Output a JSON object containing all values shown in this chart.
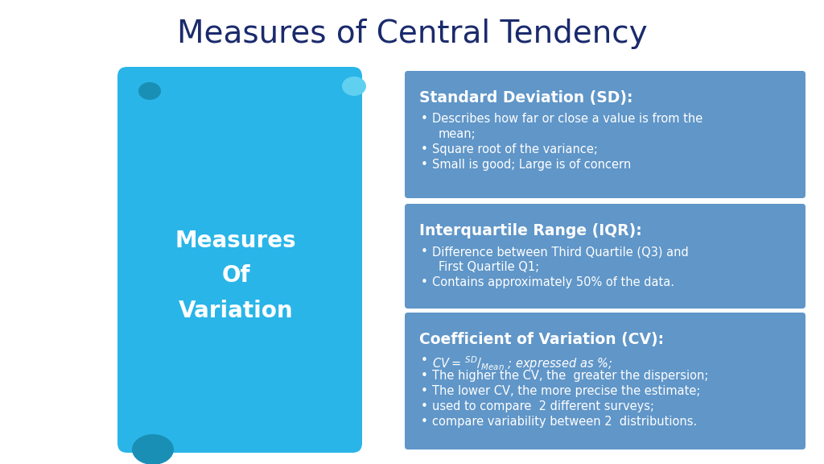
{
  "title": "Measures of Central Tendency",
  "title_color": "#1a2a6c",
  "title_fontsize": 28,
  "bg_color": "#ffffff",
  "scroll_color_main": "#29b5e8",
  "scroll_color_dark": "#1a8fb5",
  "scroll_color_curl_top_right": "#60d0f0",
  "scroll_text": "Measures\nOf\nVariation",
  "scroll_text_color": "#ffffff",
  "box_bg_color": "#6096c8",
  "boxes": [
    {
      "title": "Standard Deviation (SD):",
      "bullets": [
        "Describes how far or close a value is from the\n    mean;",
        "Square root of the variance;",
        "Small is good; Large is of concern"
      ]
    },
    {
      "title": "Interquartile Range (IQR):",
      "bullets": [
        "Difference between Third Quartile (Q3) and\n    First Quartile Q1;",
        "Contains approximately 50% of the data."
      ]
    },
    {
      "title": "Coefficient of Variation (CV):",
      "bullets": [
        "CV_FORMULA",
        "The higher the CV, the  greater the dispersion;",
        "The lower CV, the more precise the estimate;",
        "used to compare  2 different surveys;",
        "compare variability between 2  distributions."
      ]
    }
  ]
}
